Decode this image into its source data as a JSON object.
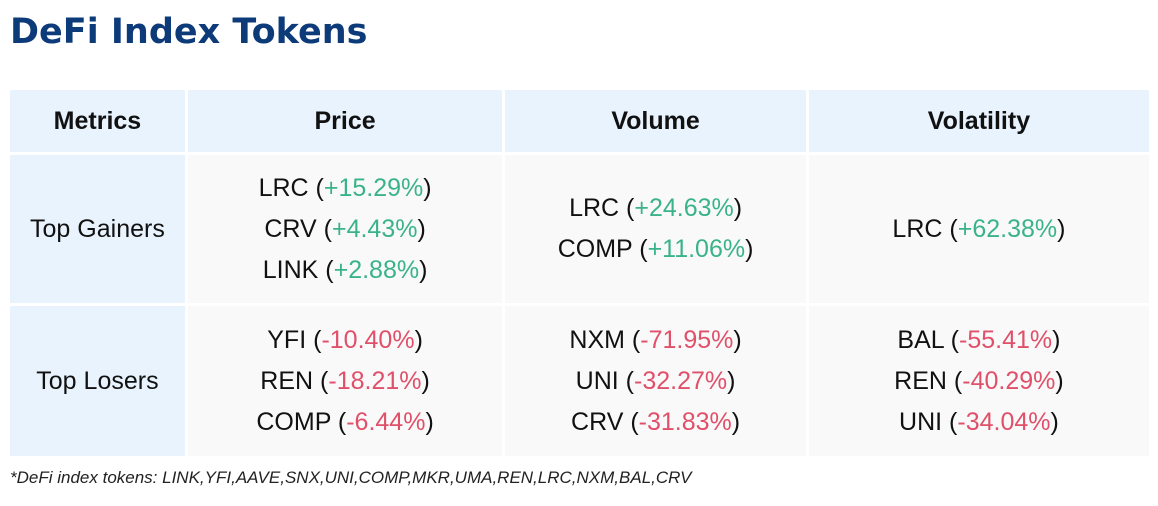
{
  "title": "DeFi Index Tokens",
  "colors": {
    "title": "#0d3b7a",
    "positive": "#3ab389",
    "negative": "#e0506a",
    "header_bg": "#e8f3fd"
  },
  "headers": [
    "Metrics",
    "Price",
    "Volume",
    "Volatility"
  ],
  "rows": [
    {
      "label": "Top Gainers",
      "price": [
        {
          "token": "LRC",
          "change": "+15.29%"
        },
        {
          "token": "CRV",
          "change": "+4.43%"
        },
        {
          "token": "LINK",
          "change": "+2.88%"
        }
      ],
      "volume": [
        {
          "token": "LRC",
          "change": "+24.63%"
        },
        {
          "token": "COMP",
          "change": "+11.06%"
        }
      ],
      "volatility": [
        {
          "token": "LRC",
          "change": "+62.38%"
        }
      ]
    },
    {
      "label": "Top Losers",
      "price": [
        {
          "token": "YFI",
          "change": "-10.40%"
        },
        {
          "token": "REN",
          "change": "-18.21%"
        },
        {
          "token": "COMP",
          "change": "-6.44%"
        }
      ],
      "volume": [
        {
          "token": "NXM",
          "change": "-71.95%"
        },
        {
          "token": "UNI",
          "change": "-32.27%"
        },
        {
          "token": "CRV",
          "change": "-31.83%"
        }
      ],
      "volatility": [
        {
          "token": "BAL",
          "change": "-55.41%"
        },
        {
          "token": "REN",
          "change": "-40.29%"
        },
        {
          "token": "UNI",
          "change": "-34.04%"
        }
      ]
    }
  ],
  "footnote": "*DeFi index tokens: LINK,YFI,AAVE,SNX,UNI,COMP,MKR,UMA,REN,LRC,NXM,BAL,CRV"
}
